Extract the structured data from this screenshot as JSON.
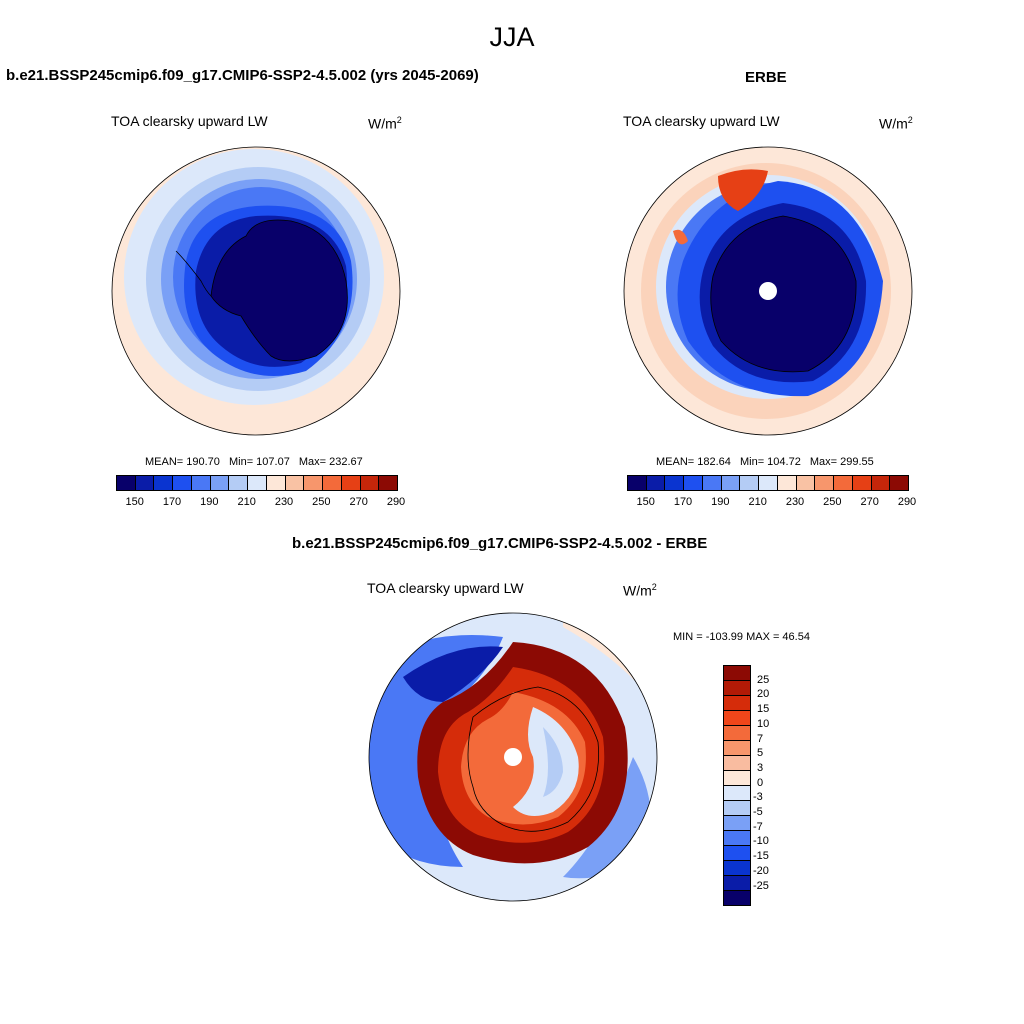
{
  "figure": {
    "season_title": "JJA"
  },
  "panel_model": {
    "case_title": "b.e21.BSSP245cmip6.f09_g17.CMIP6-SSP2-4.5.002 (yrs 2045-2069)",
    "variable": "TOA clearsky upward LW",
    "units_base": "W/m",
    "units_exp": "2",
    "stats": {
      "mean": "MEAN= 190.70",
      "min": "Min= 107.07",
      "max": "Max= 232.67"
    }
  },
  "panel_obs": {
    "case_title": "ERBE",
    "variable": "TOA clearsky upward LW",
    "units_base": "W/m",
    "units_exp": "2",
    "stats": {
      "mean": "MEAN= 182.64",
      "min": "Min= 104.72",
      "max": "Max= 299.55"
    }
  },
  "panel_diff": {
    "case_title": "b.e21.BSSP245cmip6.f09_g17.CMIP6-SSP2-4.5.002 - ERBE",
    "variable": "TOA clearsky upward LW",
    "units_base": "W/m",
    "units_exp": "2",
    "minmax": "MIN = -103.99 MAX =  46.54"
  },
  "colorbar_abs": {
    "colors": [
      "#08006a",
      "#0a1ca8",
      "#0a34d0",
      "#1e50f0",
      "#4a78f5",
      "#7aa0f6",
      "#b4ccf5",
      "#dce8fa",
      "#fde7d8",
      "#f9c2a4",
      "#f7966c",
      "#f36a3a",
      "#e64015",
      "#c5260a",
      "#8c0a04"
    ],
    "tick_labels": [
      "150",
      "170",
      "190",
      "210",
      "230",
      "250",
      "270",
      "290"
    ]
  },
  "colorbar_diff": {
    "colors": [
      "#8c0a04",
      "#b21a06",
      "#d52c0a",
      "#f0461a",
      "#f36a3a",
      "#f7966c",
      "#f9bca0",
      "#fde7d8",
      "#dce8fa",
      "#b4ccf5",
      "#7aa0f6",
      "#4a78f5",
      "#1e50f0",
      "#0a34d0",
      "#0a1ca8",
      "#08006a"
    ],
    "tick_labels": [
      "25",
      "20",
      "15",
      "10",
      "7",
      "5",
      "3",
      "0",
      "-3",
      "-5",
      "-7",
      "-10",
      "-15",
      "-20",
      "-25"
    ]
  },
  "map_colors": {
    "deep_blue": "#08006a",
    "blue1": "#0a1ca8",
    "blue2": "#1e50f0",
    "blue3": "#4a78f5",
    "blue4": "#7aa0f6",
    "blue5": "#b4ccf5",
    "blue6": "#dce8fa",
    "peach": "#fde7d8",
    "salmon": "#f9c2a4",
    "orange": "#f36a3a",
    "red": "#c5260a",
    "dark_red": "#8c0a04"
  }
}
